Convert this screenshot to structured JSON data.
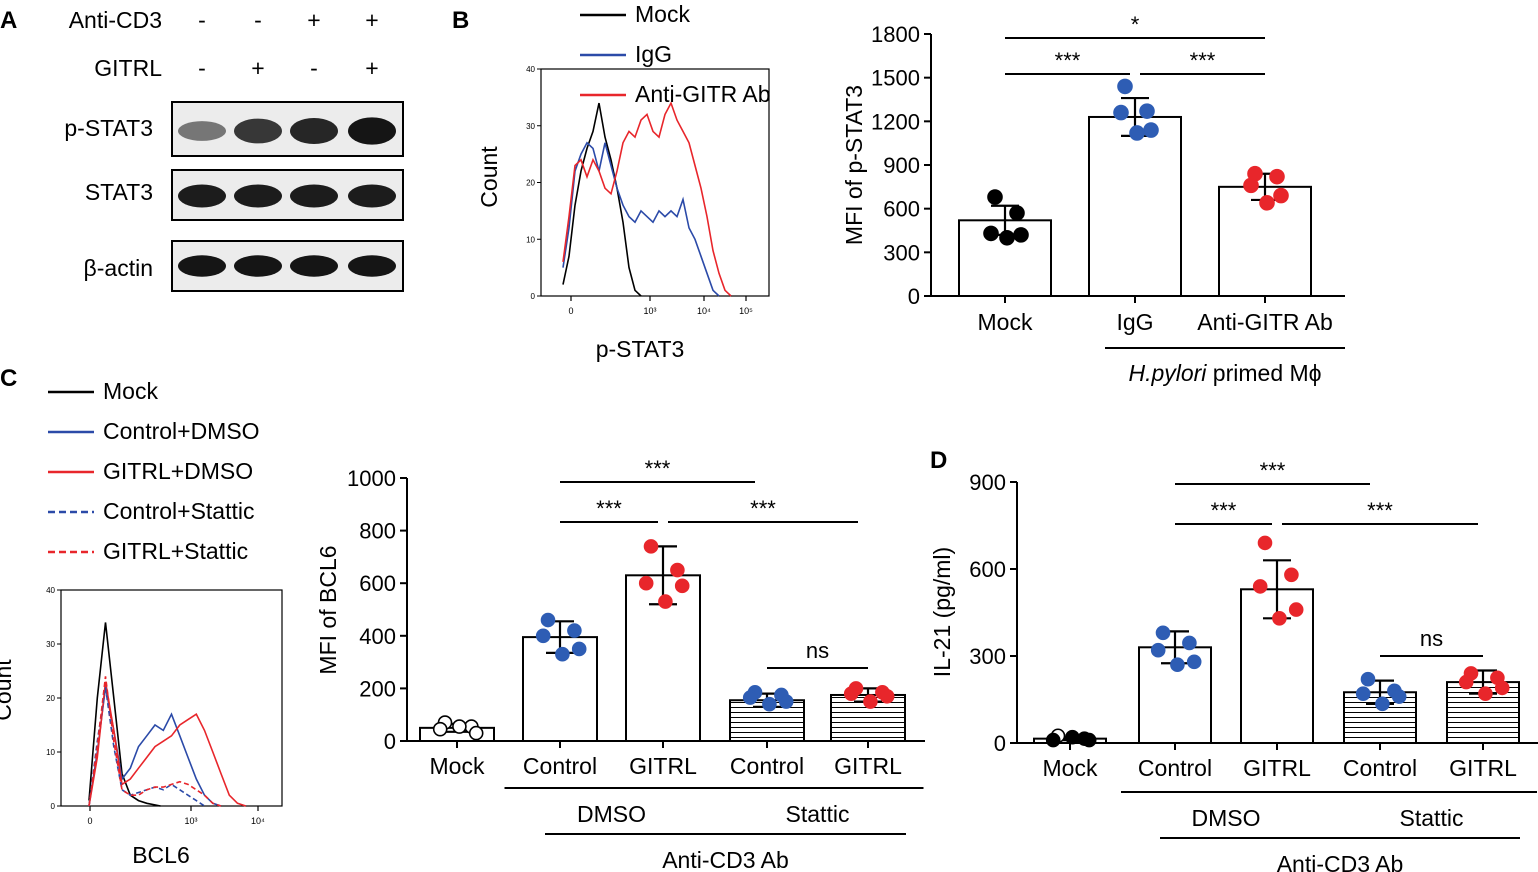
{
  "panel_labels": {
    "a": "A",
    "b": "B",
    "c": "C",
    "d": "D"
  },
  "panel_a": {
    "rows": [
      {
        "label": "Anti-CD3",
        "signs": [
          "-",
          "-",
          "+",
          "+"
        ]
      },
      {
        "label": "GITRL",
        "signs": [
          "-",
          "+",
          "-",
          "+"
        ]
      }
    ],
    "blots": [
      {
        "label": "p-STAT3",
        "intensity": [
          0.35,
          0.75,
          0.85,
          0.95
        ]
      },
      {
        "label": "STAT3",
        "intensity": [
          0.9,
          0.9,
          0.9,
          0.9
        ]
      },
      {
        "label": "β-actin",
        "intensity": [
          0.95,
          0.95,
          0.95,
          0.95
        ]
      }
    ]
  },
  "colors": {
    "black": "#000000",
    "blue": "#2b4aa8",
    "red": "#e8262b",
    "blue_dot": "#2e5db4",
    "red_dot": "#e8262b"
  },
  "chart_data": [
    {
      "id": "b_hist",
      "type": "line",
      "title": "",
      "xlabel": "p-STAT3",
      "ylabel": "Count",
      "ylim": [
        0,
        40
      ],
      "yticks": [
        "0",
        "10",
        "20",
        "30",
        "40"
      ],
      "xticks": [
        "0",
        "10³",
        "10⁴",
        "10⁵"
      ],
      "legend": [
        {
          "name": "Mock",
          "color": "#000000",
          "dash": false
        },
        {
          "name": "IgG",
          "color": "#2b4aa8",
          "dash": false
        },
        {
          "name": "Anti-GITR Ab",
          "color": "#e8262b",
          "dash": false
        }
      ],
      "series": [
        {
          "name": "Mock",
          "points": [
            [
              0,
              2
            ],
            [
              0.1,
              7
            ],
            [
              0.2,
              16
            ],
            [
              0.3,
              22
            ],
            [
              0.4,
              26
            ],
            [
              0.5,
              29
            ],
            [
              0.6,
              34
            ],
            [
              0.7,
              28
            ],
            [
              0.8,
              24
            ],
            [
              0.9,
              19
            ],
            [
              1.0,
              13
            ],
            [
              1.1,
              5
            ],
            [
              1.2,
              1
            ],
            [
              1.3,
              0
            ]
          ]
        },
        {
          "name": "IgG",
          "points": [
            [
              0,
              5
            ],
            [
              0.1,
              12
            ],
            [
              0.2,
              22
            ],
            [
              0.3,
              25
            ],
            [
              0.4,
              27
            ],
            [
              0.5,
              26
            ],
            [
              0.6,
              22
            ],
            [
              0.7,
              27
            ],
            [
              0.8,
              23
            ],
            [
              0.9,
              19
            ],
            [
              1.0,
              16
            ],
            [
              1.1,
              14
            ],
            [
              1.2,
              13
            ],
            [
              1.3,
              15
            ],
            [
              1.4,
              14
            ],
            [
              1.5,
              13
            ],
            [
              1.6,
              15
            ],
            [
              1.7,
              14
            ],
            [
              1.8,
              15
            ],
            [
              1.9,
              14
            ],
            [
              2.0,
              17
            ],
            [
              2.1,
              12
            ],
            [
              2.2,
              10
            ],
            [
              2.3,
              7
            ],
            [
              2.4,
              4
            ],
            [
              2.5,
              1
            ],
            [
              2.6,
              0
            ]
          ]
        },
        {
          "name": "Anti-GITR Ab",
          "points": [
            [
              0,
              6
            ],
            [
              0.1,
              14
            ],
            [
              0.2,
              23
            ],
            [
              0.3,
              24
            ],
            [
              0.4,
              21
            ],
            [
              0.5,
              24
            ],
            [
              0.6,
              22
            ],
            [
              0.7,
              19
            ],
            [
              0.8,
              18
            ],
            [
              0.9,
              22
            ],
            [
              1.0,
              27
            ],
            [
              1.1,
              29
            ],
            [
              1.2,
              28
            ],
            [
              1.3,
              31
            ],
            [
              1.4,
              32
            ],
            [
              1.5,
              29
            ],
            [
              1.6,
              28
            ],
            [
              1.7,
              32
            ],
            [
              1.8,
              34
            ],
            [
              1.9,
              31
            ],
            [
              2.0,
              29
            ],
            [
              2.1,
              27
            ],
            [
              2.2,
              23
            ],
            [
              2.3,
              19
            ],
            [
              2.4,
              14
            ],
            [
              2.5,
              8
            ],
            [
              2.6,
              4
            ],
            [
              2.7,
              1
            ],
            [
              2.8,
              0
            ]
          ]
        }
      ]
    },
    {
      "id": "b_bar",
      "type": "bar",
      "title": "",
      "xlabel": "H.pylori primed Mϕ",
      "xlabel_italic": "H.pylori",
      "xlabel_rest": " primed Mϕ",
      "ylabel": "MFI of p-STAT3",
      "ylim": [
        0,
        1800
      ],
      "yticks": [
        "0",
        "300",
        "600",
        "900",
        "1200",
        "1500",
        "1800"
      ],
      "categories": [
        "Mock",
        "IgG",
        "Anti-GITR Ab"
      ],
      "values": [
        520,
        1230,
        750
      ],
      "errors": [
        100,
        130,
        90
      ],
      "dot_colors": [
        "black",
        "blue",
        "red"
      ],
      "points": [
        [
          680,
          570,
          430,
          420,
          400
        ],
        [
          1440,
          1270,
          1260,
          1140,
          1120
        ],
        [
          840,
          820,
          760,
          690,
          640
        ]
      ],
      "significance": [
        {
          "from": 0,
          "to": 1,
          "label": "***"
        },
        {
          "from": 1,
          "to": 2,
          "label": "***"
        },
        {
          "from": 0,
          "to": 2,
          "label": "*"
        }
      ]
    },
    {
      "id": "c_hist",
      "type": "line",
      "title": "",
      "xlabel": "BCL6",
      "ylabel": "Count",
      "ylim": [
        0,
        40
      ],
      "yticks": [
        "0",
        "10",
        "20",
        "30",
        "40"
      ],
      "xticks": [
        "0",
        "10³",
        "10⁴"
      ],
      "legend": [
        {
          "name": "Mock",
          "color": "#000000",
          "dash": false
        },
        {
          "name": "Control+DMSO",
          "color": "#2b4aa8",
          "dash": false
        },
        {
          "name": "GITRL+DMSO",
          "color": "#e8262b",
          "dash": false
        },
        {
          "name": "Control+Stattic",
          "color": "#2b4aa8",
          "dash": true
        },
        {
          "name": "GITRL+Stattic",
          "color": "#e8262b",
          "dash": true
        }
      ],
      "series": [
        {
          "name": "Mock",
          "points": [
            [
              0,
              1
            ],
            [
              0.15,
              20
            ],
            [
              0.3,
              34
            ],
            [
              0.45,
              20
            ],
            [
              0.6,
              6
            ],
            [
              0.75,
              2
            ],
            [
              0.9,
              1
            ],
            [
              1.05,
              0.5
            ],
            [
              1.3,
              0
            ]
          ]
        },
        {
          "name": "Control+DMSO",
          "points": [
            [
              0,
              0
            ],
            [
              0.15,
              10
            ],
            [
              0.3,
              22
            ],
            [
              0.45,
              14
            ],
            [
              0.6,
              5
            ],
            [
              0.75,
              7
            ],
            [
              0.9,
              11
            ],
            [
              1.05,
              13
            ],
            [
              1.2,
              15
            ],
            [
              1.35,
              14
            ],
            [
              1.5,
              17
            ],
            [
              1.65,
              13
            ],
            [
              1.8,
              9
            ],
            [
              1.95,
              5
            ],
            [
              2.1,
              2
            ],
            [
              2.25,
              0.5
            ],
            [
              2.4,
              0
            ]
          ]
        },
        {
          "name": "GITRL+DMSO",
          "points": [
            [
              0,
              0
            ],
            [
              0.15,
              9
            ],
            [
              0.3,
              23
            ],
            [
              0.45,
              14
            ],
            [
              0.6,
              4
            ],
            [
              0.75,
              5
            ],
            [
              0.9,
              7
            ],
            [
              1.05,
              9
            ],
            [
              1.2,
              11
            ],
            [
              1.35,
              12
            ],
            [
              1.5,
              13
            ],
            [
              1.65,
              15
            ],
            [
              1.8,
              16
            ],
            [
              1.95,
              17
            ],
            [
              2.1,
              14
            ],
            [
              2.25,
              10
            ],
            [
              2.4,
              6
            ],
            [
              2.55,
              2
            ],
            [
              2.7,
              0.5
            ],
            [
              2.85,
              0
            ]
          ]
        },
        {
          "name": "Control+Stattic",
          "points": [
            [
              0,
              0
            ],
            [
              0.15,
              12
            ],
            [
              0.3,
              22
            ],
            [
              0.45,
              11
            ],
            [
              0.6,
              3
            ],
            [
              0.75,
              2
            ],
            [
              0.9,
              2.5
            ],
            [
              1.05,
              3
            ],
            [
              1.2,
              3.5
            ],
            [
              1.35,
              3
            ],
            [
              1.5,
              4
            ],
            [
              1.65,
              3
            ],
            [
              1.8,
              2
            ],
            [
              1.95,
              1
            ],
            [
              2.1,
              0
            ]
          ]
        },
        {
          "name": "GITRL+Stattic",
          "points": [
            [
              0,
              0
            ],
            [
              0.15,
              11
            ],
            [
              0.3,
              24
            ],
            [
              0.45,
              12
            ],
            [
              0.6,
              3
            ],
            [
              0.75,
              2
            ],
            [
              0.9,
              2
            ],
            [
              1.05,
              3
            ],
            [
              1.2,
              3.5
            ],
            [
              1.35,
              3.5
            ],
            [
              1.5,
              4
            ],
            [
              1.65,
              4.5
            ],
            [
              1.8,
              4
            ],
            [
              1.95,
              3
            ],
            [
              2.1,
              2
            ],
            [
              2.25,
              0.5
            ],
            [
              2.4,
              0
            ]
          ]
        }
      ]
    },
    {
      "id": "c_bar",
      "type": "bar",
      "title": "",
      "xlabel": "Anti-CD3 Ab",
      "ylabel": "MFI of BCL6",
      "ylim": [
        0,
        1000
      ],
      "yticks": [
        "0",
        "200",
        "400",
        "600",
        "800",
        "1000"
      ],
      "categories": [
        "Mock",
        "Control",
        "GITRL",
        "Control",
        "GITRL"
      ],
      "groups": [
        {
          "label": "DMSO",
          "from": 1,
          "to": 2
        },
        {
          "label": "Stattic",
          "from": 3,
          "to": 4
        }
      ],
      "values": [
        50,
        395,
        630,
        155,
        175
      ],
      "errors": [
        15,
        60,
        110,
        25,
        25
      ],
      "hatched": [
        false,
        false,
        false,
        true,
        true
      ],
      "dot_colors": [
        "open",
        "blue",
        "red",
        "blue",
        "red"
      ],
      "points": [
        [
          70,
          55,
          45,
          30,
          55
        ],
        [
          460,
          420,
          400,
          350,
          330
        ],
        [
          740,
          650,
          600,
          590,
          530
        ],
        [
          185,
          175,
          165,
          150,
          140
        ],
        [
          200,
          185,
          180,
          170,
          150
        ]
      ],
      "significance": [
        {
          "from": 1,
          "to": 2,
          "label": "***"
        },
        {
          "from": 2,
          "to": 4,
          "label": "***"
        },
        {
          "from": 1,
          "to": 3,
          "label": "***"
        },
        {
          "from": 3,
          "to": 4,
          "label": "ns"
        }
      ]
    },
    {
      "id": "d_bar",
      "type": "bar",
      "title": "",
      "xlabel": "Anti-CD3 Ab",
      "ylabel": "IL-21 (pg/ml)",
      "ylim": [
        0,
        900
      ],
      "yticks": [
        "0",
        "300",
        "600",
        "900"
      ],
      "categories": [
        "Mock",
        "Control",
        "GITRL",
        "Control",
        "GITRL"
      ],
      "groups": [
        {
          "label": "DMSO",
          "from": 1,
          "to": 2
        },
        {
          "label": "Stattic",
          "from": 3,
          "to": 4
        }
      ],
      "values": [
        15,
        330,
        530,
        175,
        210
      ],
      "errors": [
        5,
        55,
        100,
        40,
        40
      ],
      "hatched": [
        false,
        false,
        false,
        true,
        true
      ],
      "dot_colors": [
        "black-mixed",
        "blue",
        "red",
        "blue",
        "red"
      ],
      "points": [
        [
          25,
          15,
          10,
          10,
          20
        ],
        [
          380,
          345,
          320,
          280,
          270
        ],
        [
          690,
          580,
          540,
          460,
          430
        ],
        [
          220,
          180,
          170,
          160,
          135
        ],
        [
          240,
          225,
          210,
          190,
          170
        ]
      ],
      "significance": [
        {
          "from": 1,
          "to": 2,
          "label": "***"
        },
        {
          "from": 2,
          "to": 4,
          "label": "***"
        },
        {
          "from": 1,
          "to": 3,
          "label": "***"
        },
        {
          "from": 3,
          "to": 4,
          "label": "ns"
        }
      ]
    }
  ]
}
